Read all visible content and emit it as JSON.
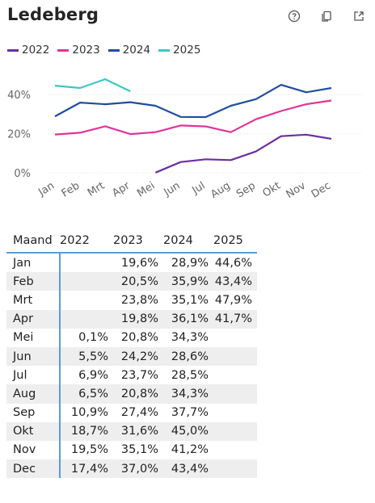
{
  "title": "Ledeberg",
  "icons": [
    "help-icon",
    "copy-icon",
    "expand-icon"
  ],
  "chart_data": {
    "type": "line",
    "categories": [
      "Jan",
      "Feb",
      "Mrt",
      "Apr",
      "Mei",
      "Jun",
      "Jul",
      "Aug",
      "Sep",
      "Okt",
      "Nov",
      "Dec"
    ],
    "ylim": [
      0,
      50
    ],
    "yticks": [
      "0%",
      "20%",
      "40%"
    ],
    "ytick_values": [
      0,
      20,
      40
    ],
    "grid": true,
    "legend_position": "top-left",
    "series": [
      {
        "name": "2022",
        "color": "#6b2fa0",
        "values": [
          null,
          null,
          null,
          null,
          0.1,
          5.5,
          6.9,
          6.5,
          10.9,
          18.7,
          19.5,
          17.4
        ]
      },
      {
        "name": "2023",
        "color": "#e0349a",
        "values": [
          19.6,
          20.5,
          23.8,
          19.8,
          20.8,
          24.2,
          23.7,
          20.8,
          27.4,
          31.6,
          35.1,
          37.0
        ]
      },
      {
        "name": "2024",
        "color": "#1f4e9e",
        "values": [
          28.9,
          35.9,
          35.1,
          36.1,
          34.3,
          28.6,
          28.5,
          34.3,
          37.7,
          45.0,
          41.2,
          43.4
        ]
      },
      {
        "name": "2025",
        "color": "#3cc6c6",
        "values": [
          44.6,
          43.4,
          47.9,
          41.7,
          null,
          null,
          null,
          null,
          null,
          null,
          null,
          null
        ]
      }
    ]
  },
  "table": {
    "headers": [
      "Maand",
      "2022",
      "2023",
      "2024",
      "2025"
    ],
    "rows": [
      [
        "Jan",
        "",
        "19,6%",
        "28,9%",
        "44,6%"
      ],
      [
        "Feb",
        "",
        "20,5%",
        "35,9%",
        "43,4%"
      ],
      [
        "Mrt",
        "",
        "23,8%",
        "35,1%",
        "47,9%"
      ],
      [
        "Apr",
        "",
        "19,8%",
        "36,1%",
        "41,7%"
      ],
      [
        "Mei",
        "0,1%",
        "20,8%",
        "34,3%",
        ""
      ],
      [
        "Jun",
        "5,5%",
        "24,2%",
        "28,6%",
        ""
      ],
      [
        "Jul",
        "6,9%",
        "23,7%",
        "28,5%",
        ""
      ],
      [
        "Aug",
        "6,5%",
        "20,8%",
        "34,3%",
        ""
      ],
      [
        "Sep",
        "10,9%",
        "27,4%",
        "37,7%",
        ""
      ],
      [
        "Okt",
        "18,7%",
        "31,6%",
        "45,0%",
        ""
      ],
      [
        "Nov",
        "19,5%",
        "35,1%",
        "41,2%",
        ""
      ],
      [
        "Dec",
        "17,4%",
        "37,0%",
        "43,4%",
        ""
      ]
    ]
  }
}
